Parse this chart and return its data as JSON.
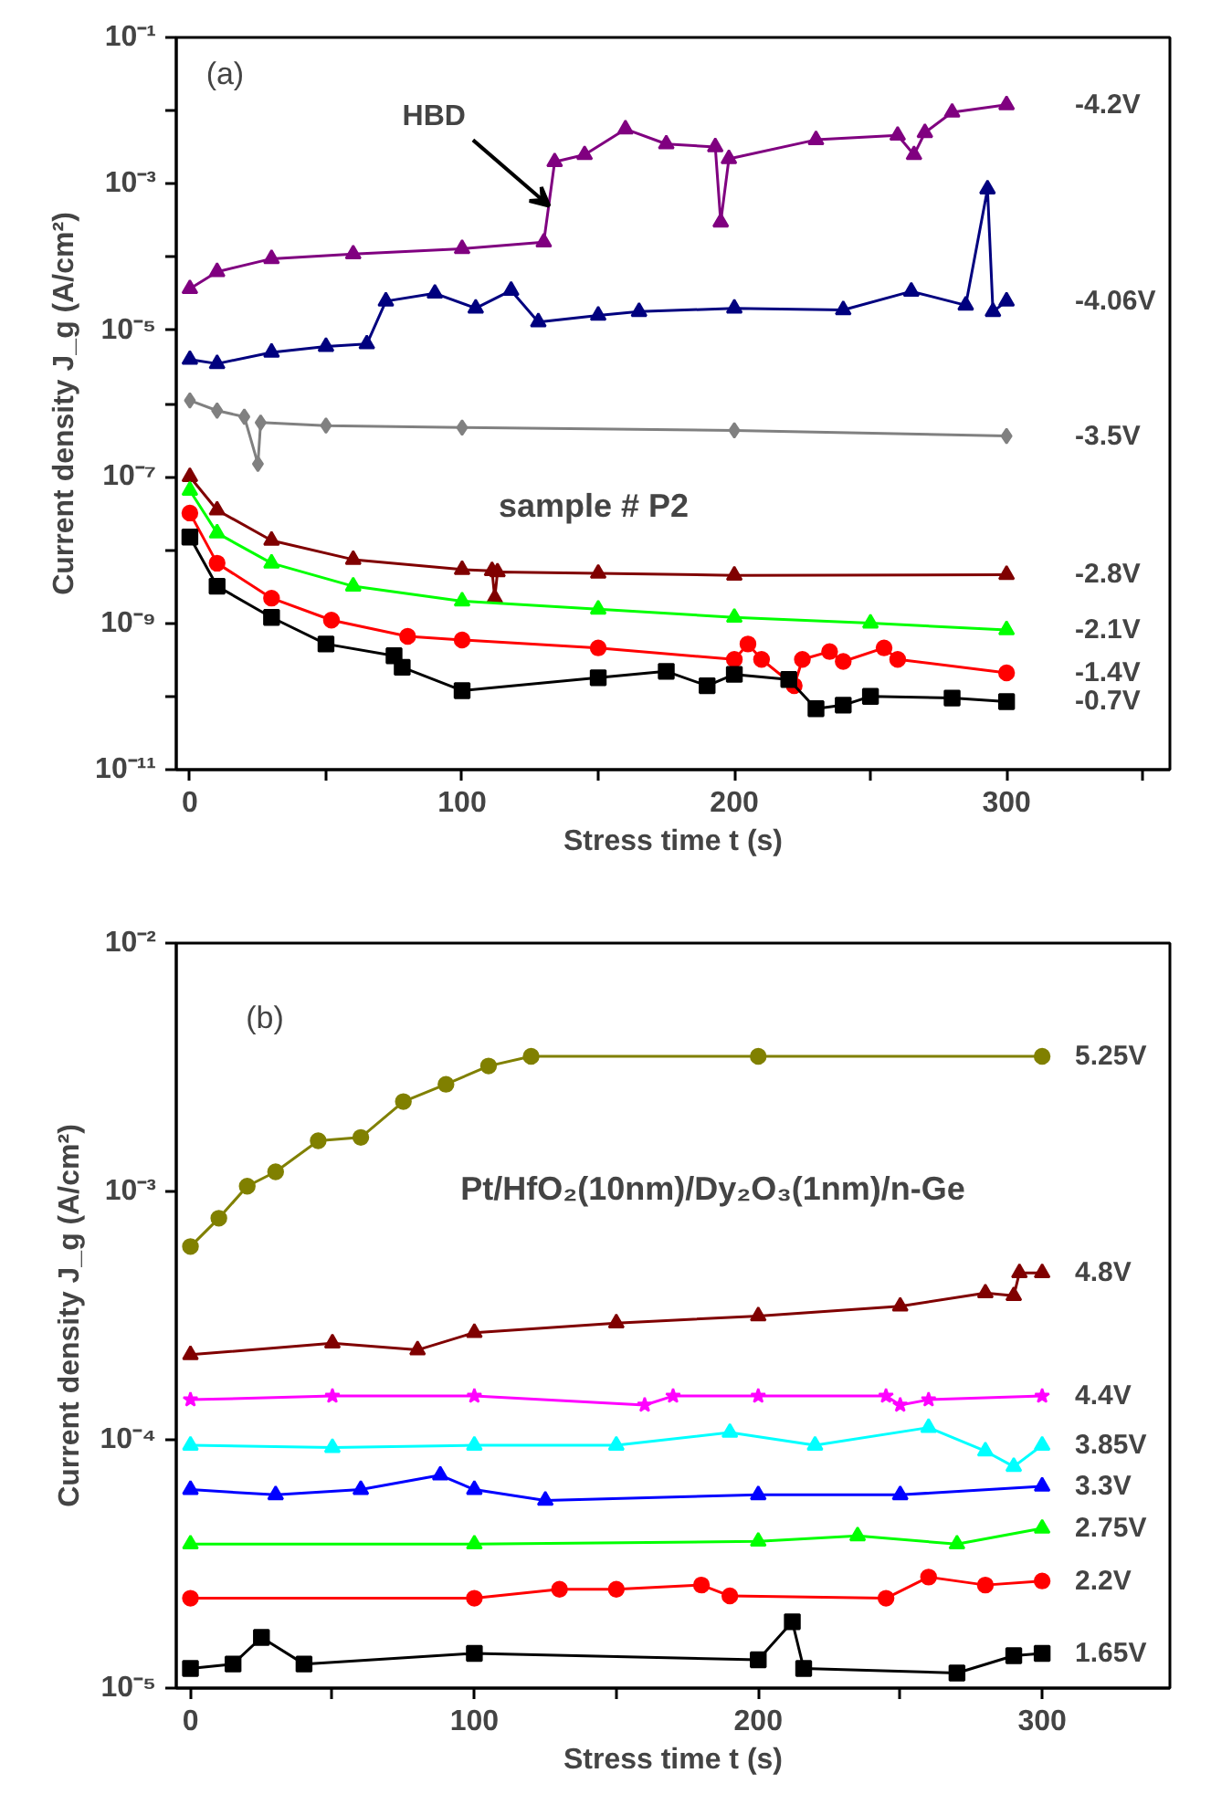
{
  "chart_data": [
    {
      "type": "line",
      "xlabel": "Stress time t (s)",
      "ylabel": "Current density J_g (A/cm²)",
      "log": "y",
      "grid": false,
      "legend": false,
      "xlim": [
        -5,
        360
      ],
      "xticks": [
        0,
        {
          "value": 50,
          "label": null
        },
        100,
        {
          "value": 150,
          "label": null
        },
        200,
        {
          "value": 250,
          "label": null
        },
        300,
        {
          "value": 350,
          "label": null
        }
      ],
      "ylim": [
        1e-11,
        0.1
      ],
      "yticks": [
        {
          "value": 1e-11,
          "label": "10⁻¹¹"
        },
        {
          "value": 1e-10,
          "label": null
        },
        {
          "value": 1e-09,
          "label": "10⁻⁹"
        },
        {
          "value": 1e-08,
          "label": null
        },
        {
          "value": 1e-07,
          "label": "10⁻⁷"
        },
        {
          "value": 1e-06,
          "label": null
        },
        {
          "value": 1e-05,
          "label": "10⁻⁵"
        },
        {
          "value": 0.0001,
          "label": null
        },
        {
          "value": 0.001,
          "label": "10⁻³"
        },
        {
          "value": 0.01,
          "label": null
        },
        {
          "value": 0.1,
          "label": "10⁻¹"
        }
      ],
      "annotations": [
        "(a)",
        "sample # P2",
        {
          "text": "HBD",
          "x": 132,
          "y": 0.0005
        }
      ],
      "series": [
        {
          "name": "-4.2V",
          "color": "#800080",
          "marker": "triangle",
          "x": [
            0,
            10,
            30,
            60,
            100,
            130,
            134,
            145,
            160,
            175,
            193,
            195,
            198,
            230,
            260,
            266,
            270,
            280,
            300
          ],
          "values": [
            3.7e-05,
            6.3e-05,
            9.5e-05,
            0.00011,
            0.00013,
            0.00016,
            0.002,
            0.0025,
            0.0056,
            0.0035,
            0.0032,
            0.0003,
            0.0022,
            0.004,
            0.0046,
            0.0025,
            0.005,
            0.0095,
            0.012
          ]
        },
        {
          "name": "-4.06V",
          "color": "#00007f",
          "marker": "triangle",
          "x": [
            0,
            10,
            30,
            50,
            65,
            72,
            90,
            105,
            118,
            128,
            150,
            165,
            200,
            240,
            265,
            285,
            293,
            295,
            300
          ],
          "values": [
            4e-06,
            3.5e-06,
            5e-06,
            6e-06,
            6.5e-06,
            2.5e-05,
            3.2e-05,
            2e-05,
            3.5e-05,
            1.3e-05,
            1.6e-05,
            1.8e-05,
            2e-05,
            1.9e-05,
            3.4e-05,
            2.2e-05,
            0.00085,
            1.8e-05,
            2.5e-05
          ]
        },
        {
          "name": "-3.5V",
          "color": "#808080",
          "marker": "diamond",
          "x": [
            0,
            10,
            20,
            25,
            26,
            50,
            100,
            200,
            300
          ],
          "values": [
            1.1e-06,
            8e-07,
            6.6e-07,
            1.5e-07,
            5.5e-07,
            5e-07,
            4.7e-07,
            4.3e-07,
            3.6e-07
          ]
        },
        {
          "name": "-2.8V",
          "color": "#800000",
          "marker": "triangle",
          "x": [
            0,
            10,
            30,
            60,
            100,
            111,
            112,
            113,
            150,
            200,
            300
          ],
          "values": [
            1e-07,
            3.5e-08,
            1.35e-08,
            7.4e-09,
            5.4e-09,
            5.2e-09,
            2.2e-09,
            5e-09,
            4.8e-09,
            4.5e-09,
            4.6e-09
          ]
        },
        {
          "name": "-2.1V",
          "color": "#00ff00",
          "marker": "triangle",
          "x": [
            0,
            10,
            30,
            60,
            100,
            150,
            200,
            250,
            300
          ],
          "values": [
            6.5e-08,
            1.7e-08,
            6.6e-09,
            3.2e-09,
            2e-09,
            1.55e-09,
            1.2e-09,
            1e-09,
            8.1e-10
          ]
        },
        {
          "name": "-1.4V",
          "color": "#ff0000",
          "marker": "circle",
          "x": [
            0,
            10,
            30,
            52,
            80,
            100,
            150,
            200,
            205,
            210,
            222,
            225,
            235,
            240,
            255,
            260,
            300
          ],
          "values": [
            3.2e-08,
            6.6e-09,
            2.2e-09,
            1.1e-09,
            6.6e-10,
            5.9e-10,
            4.6e-10,
            3.2e-10,
            5.2e-10,
            3.2e-10,
            1.4e-10,
            3.2e-10,
            4.1e-10,
            3e-10,
            4.6e-10,
            3.2e-10,
            2.1e-10
          ]
        },
        {
          "name": "-0.7V",
          "color": "#000000",
          "marker": "square",
          "x": [
            0,
            10,
            30,
            50,
            75,
            78,
            100,
            150,
            175,
            190,
            200,
            220,
            230,
            240,
            250,
            280,
            300
          ],
          "values": [
            1.5e-08,
            3.2e-09,
            1.2e-09,
            5.2e-10,
            3.6e-10,
            2.5e-10,
            1.2e-10,
            1.8e-10,
            2.2e-10,
            1.4e-10,
            2e-10,
            1.7e-10,
            6.8e-11,
            7.6e-11,
            1e-10,
            9.5e-11,
            8.5e-11
          ]
        }
      ]
    },
    {
      "type": "line",
      "xlabel": "Stress time t (s)",
      "ylabel": "Current density J_g (A/cm²)",
      "log": "y",
      "grid": false,
      "legend": false,
      "xlim": [
        -5,
        345
      ],
      "xticks": [
        0,
        {
          "value": 50,
          "label": null
        },
        100,
        {
          "value": 150,
          "label": null
        },
        200,
        {
          "value": 250,
          "label": null
        },
        300
      ],
      "ylim": [
        1e-05,
        0.01
      ],
      "yticks": [
        {
          "value": 1e-05,
          "label": "10⁻⁵"
        },
        {
          "value": 0.0001,
          "label": "10⁻⁴"
        },
        {
          "value": 0.001,
          "label": "10⁻³"
        },
        {
          "value": 0.01,
          "label": "10⁻²"
        }
      ],
      "annotations": [
        "(b)",
        "Pt/HfO₂(10nm)/Dy₂O₃(1nm)/n-Ge"
      ],
      "series": [
        {
          "name": "5.25V",
          "color": "#808000",
          "marker": "circle",
          "x": [
            0,
            10,
            20,
            30,
            45,
            60,
            75,
            90,
            105,
            120,
            200,
            300
          ],
          "values": [
            0.0006,
            0.00078,
            0.00105,
            0.0012,
            0.0016,
            0.00165,
            0.0023,
            0.0027,
            0.0032,
            0.0035,
            0.0035,
            0.0035
          ]
        },
        {
          "name": "4.8V",
          "color": "#800000",
          "marker": "triangle",
          "x": [
            0,
            50,
            80,
            100,
            150,
            200,
            250,
            280,
            290,
            292,
            300
          ],
          "values": [
            0.00022,
            0.000245,
            0.00023,
            0.00027,
            0.000295,
            0.000315,
            0.000345,
            0.00039,
            0.00038,
            0.00047,
            0.00047
          ]
        },
        {
          "name": "4.4V",
          "color": "#ff00ff",
          "marker": "star",
          "x": [
            0,
            50,
            100,
            160,
            170,
            200,
            245,
            250,
            260,
            300
          ],
          "values": [
            0.000145,
            0.00015,
            0.00015,
            0.000138,
            0.00015,
            0.00015,
            0.00015,
            0.000138,
            0.000145,
            0.00015
          ]
        },
        {
          "name": "3.85V",
          "color": "#00ffff",
          "marker": "triangle",
          "x": [
            0,
            50,
            100,
            150,
            190,
            220,
            260,
            280,
            290,
            300
          ],
          "values": [
            9.5e-05,
            9.3e-05,
            9.5e-05,
            9.5e-05,
            0.000107,
            9.5e-05,
            0.000112,
            9e-05,
            7.8e-05,
            9.5e-05
          ]
        },
        {
          "name": "3.3V",
          "color": "#0000ff",
          "marker": "triangle",
          "x": [
            0,
            30,
            60,
            88,
            100,
            125,
            200,
            250,
            300
          ],
          "values": [
            6.3e-05,
            6e-05,
            6.3e-05,
            7.2e-05,
            6.3e-05,
            5.7e-05,
            6e-05,
            6e-05,
            6.5e-05
          ]
        },
        {
          "name": "2.75V",
          "color": "#00ff00",
          "marker": "triangle",
          "x": [
            0,
            100,
            200,
            235,
            270,
            300
          ],
          "values": [
            3.8e-05,
            3.8e-05,
            3.9e-05,
            4.1e-05,
            3.8e-05,
            4.4e-05
          ]
        },
        {
          "name": "2.2V",
          "color": "#ff0000",
          "marker": "circle",
          "x": [
            0,
            100,
            130,
            150,
            180,
            190,
            245,
            260,
            280,
            300
          ],
          "values": [
            2.3e-05,
            2.3e-05,
            2.5e-05,
            2.5e-05,
            2.6e-05,
            2.35e-05,
            2.3e-05,
            2.8e-05,
            2.6e-05,
            2.7e-05
          ]
        },
        {
          "name": "1.65V",
          "color": "#000000",
          "marker": "square",
          "x": [
            0,
            15,
            25,
            40,
            100,
            200,
            212,
            216,
            270,
            290,
            300
          ],
          "values": [
            1.2e-05,
            1.25e-05,
            1.6e-05,
            1.25e-05,
            1.38e-05,
            1.3e-05,
            1.85e-05,
            1.2e-05,
            1.15e-05,
            1.35e-05,
            1.38e-05
          ]
        }
      ]
    }
  ]
}
